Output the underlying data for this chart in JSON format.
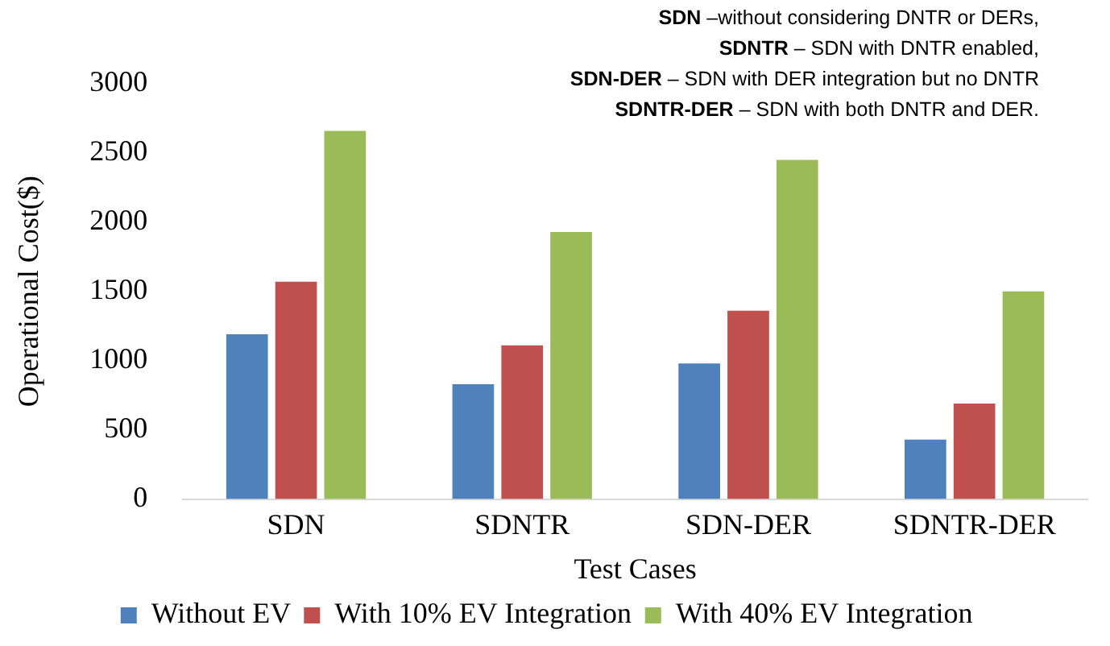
{
  "chart_data": {
    "type": "bar",
    "xlabel": "Test Cases",
    "ylabel": "Operational Cost($)",
    "categories": [
      "SDN",
      "SDNTR",
      "SDN-DER",
      "SDNTR-DER"
    ],
    "series": [
      {
        "name": "Without EV",
        "color": "#4f81bd",
        "values": [
          1190,
          830,
          980,
          430
        ]
      },
      {
        "name": "With 10% EV Integration",
        "color": "#c0504d",
        "values": [
          1570,
          1110,
          1360,
          690
        ]
      },
      {
        "name": "With 40% EV Integration",
        "color": "#9bbb59",
        "values": [
          2660,
          1930,
          2450,
          1500
        ]
      }
    ],
    "ylim": [
      0,
      3000
    ],
    "yticks": [
      0,
      500,
      1000,
      1500,
      2000,
      2500,
      3000
    ],
    "grid": false,
    "legend": "bottom",
    "annotations": [
      "SDN –without considering DNTR or DERs,",
      "SDNTR – SDN with DNTR enabled,",
      "SDN-DER – SDN with DER integration but no DNTR",
      "SDNTR-DER – SDN with both DNTR and DER."
    ]
  }
}
